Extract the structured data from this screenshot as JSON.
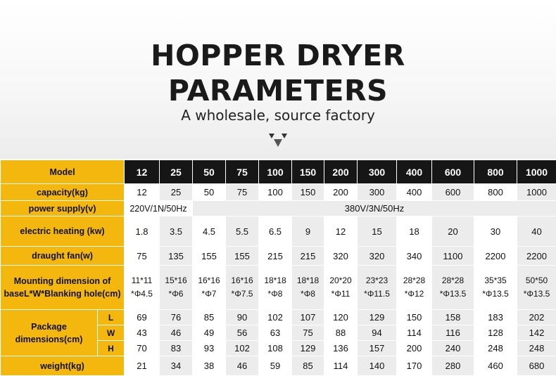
{
  "title_line1": "HOPPER DRYER",
  "title_line2": "PARAMETERS",
  "subtitle": "A wholesale, source factory",
  "row_labels": {
    "model": "Model",
    "capacity": "capacity(kg)",
    "power_supply": "power supply(v)",
    "electric_heating": "electric heating (kw)",
    "draught_fan": "draught fan(w)",
    "mounting": "Mounting dimension of baseL*W*Blanking hole(cm)",
    "package": "Package dimensions(cm)",
    "package_L": "L",
    "package_W": "W",
    "package_H": "H",
    "weight": "weight(kg)"
  },
  "models": [
    "12",
    "25",
    "50",
    "75",
    "100",
    "150",
    "200",
    "300",
    "400",
    "600",
    "800",
    "1000"
  ],
  "capacity": [
    "12",
    "25",
    "50",
    "75",
    "100",
    "150",
    "200",
    "300",
    "400",
    "600",
    "800",
    "1000"
  ],
  "power_supply": {
    "first": "220V/1N/50Hz",
    "rest": "380V/3N/50Hz"
  },
  "electric_heating": [
    "1.8",
    "3.5",
    "4.5",
    "5.5",
    "6.5",
    "9",
    "12",
    "15",
    "18",
    "20",
    "30",
    "40"
  ],
  "draught_fan": [
    "75",
    "135",
    "155",
    "155",
    "215",
    "215",
    "320",
    "320",
    "340",
    "1100",
    "2200",
    "2200"
  ],
  "mounting_dim": [
    "11*11",
    "15*16",
    "16*16",
    "16*16",
    "18*18",
    "18*18",
    "20*20",
    "23*23",
    "28*28",
    "28*28",
    "35*35",
    "50*50"
  ],
  "mounting_hole": [
    "*Φ4.5",
    "*Φ6",
    "*Φ7",
    "*Φ7.5",
    "*Φ8",
    "*Φ8",
    "*Φ11",
    "*Φ11.5",
    "*Φ12",
    "*Φ13.5",
    "*Φ13.5",
    "*Φ13.5"
  ],
  "package_L": [
    "69",
    "76",
    "85",
    "90",
    "102",
    "107",
    "120",
    "129",
    "150",
    "158",
    "183",
    "202"
  ],
  "package_W": [
    "43",
    "46",
    "49",
    "56",
    "63",
    "75",
    "88",
    "94",
    "114",
    "116",
    "128",
    "142"
  ],
  "package_H": [
    "70",
    "83",
    "93",
    "102",
    "108",
    "129",
    "136",
    "157",
    "200",
    "240",
    "248",
    "248"
  ],
  "weight": [
    "21",
    "34",
    "38",
    "46",
    "59",
    "85",
    "114",
    "140",
    "170",
    "280",
    "460",
    "680"
  ],
  "colors": {
    "accent": "#f3b70e",
    "header": "#161616",
    "stripe": "#ececec"
  }
}
